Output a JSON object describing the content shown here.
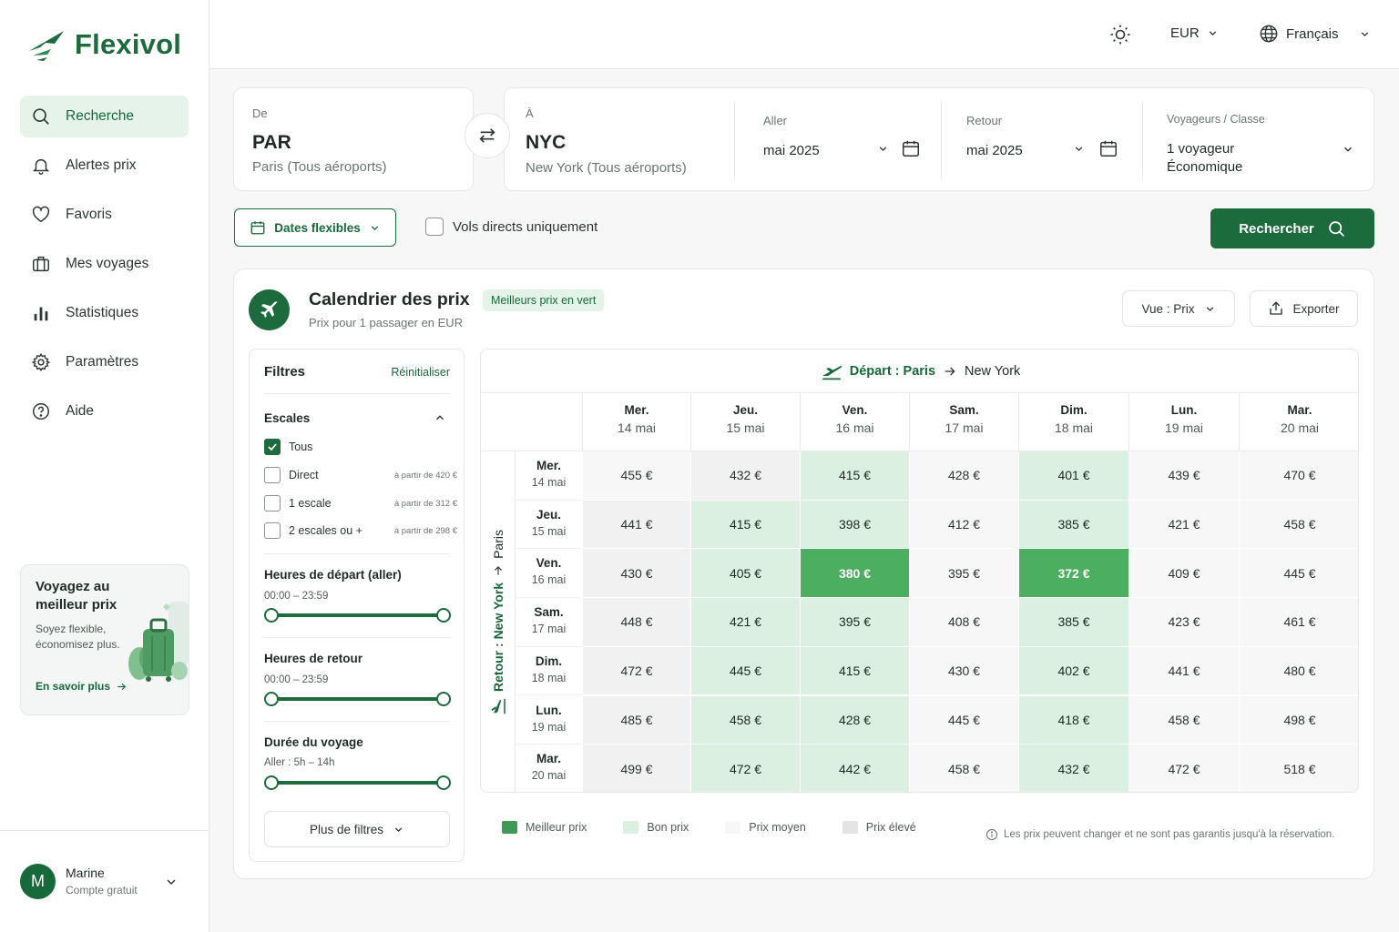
{
  "app": {
    "name": "Flexivol"
  },
  "nav": [
    {
      "label": "Recherche",
      "icon": "search-icon",
      "active": true
    },
    {
      "label": "Alertes prix",
      "icon": "bell-icon"
    },
    {
      "label": "Favoris",
      "icon": "heart-icon"
    },
    {
      "label": "Mes voyages",
      "icon": "suitcase-icon"
    },
    {
      "label": "Statistiques",
      "icon": "bar-chart-icon"
    },
    {
      "label": "Paramètres",
      "icon": "gear-icon"
    },
    {
      "label": "Aide",
      "icon": "help-icon"
    }
  ],
  "promo": {
    "title": "Voyagez au meilleur prix",
    "text": "Soyez flexible, économisez plus.",
    "link": "En savoir plus"
  },
  "user": {
    "initial": "M",
    "name": "Marine",
    "plan": "Compte gratuit"
  },
  "topbar": {
    "currency": "EUR",
    "language": "Français"
  },
  "search": {
    "from": {
      "label": "De",
      "code": "PAR",
      "city": "Paris (Tous aéroports)"
    },
    "to": {
      "label": "À",
      "code": "NYC",
      "city": "New York (Tous aéroports)"
    },
    "outbound": {
      "label": "Aller",
      "value": "mai 2025"
    },
    "return": {
      "label": "Retour",
      "value": "mai 2025"
    },
    "travelers": {
      "label": "Voyageurs / Classe",
      "count": "1 voyageur",
      "class": "Économique"
    },
    "flex_dates": "Dates flexibles",
    "direct_only": "Vols directs uniquement",
    "submit": "Rechercher"
  },
  "calendar": {
    "title": "Calendrier des prix",
    "subtitle": "Prix pour 1 passager en EUR",
    "badge": "Meilleurs prix en vert",
    "view": "Vue : Prix",
    "export": "Exporter",
    "departure_label": "Départ : Paris",
    "departure_dest": "New York",
    "return_label": "Retour : New York",
    "return_dest": "Paris",
    "columns": [
      {
        "day": "Mer.",
        "date": "14 mai"
      },
      {
        "day": "Jeu.",
        "date": "15 mai"
      },
      {
        "day": "Ven.",
        "date": "16 mai"
      },
      {
        "day": "Sam.",
        "date": "17 mai"
      },
      {
        "day": "Dim.",
        "date": "18 mai"
      },
      {
        "day": "Lun.",
        "date": "19 mai"
      },
      {
        "day": "Mar.",
        "date": "20 mai"
      }
    ],
    "rows": [
      {
        "day": "Mer.",
        "date": "14 mai",
        "prices": [
          "455 €",
          "432 €",
          "415 €",
          "428 €",
          "401 €",
          "439 €",
          "470 €"
        ],
        "levels": [
          "avg",
          "high",
          "good",
          "avg",
          "good",
          "avg",
          "avg"
        ]
      },
      {
        "day": "Jeu.",
        "date": "15 mai",
        "prices": [
          "441 €",
          "415 €",
          "398 €",
          "412 €",
          "385 €",
          "421 €",
          "458 €"
        ],
        "levels": [
          "high",
          "good",
          "good",
          "avg",
          "good",
          "avg",
          "avg"
        ]
      },
      {
        "day": "Ven.",
        "date": "16 mai",
        "prices": [
          "430 €",
          "405 €",
          "380 €",
          "395 €",
          "372 €",
          "409 €",
          "445 €"
        ],
        "levels": [
          "high",
          "good",
          "best",
          "avg",
          "best",
          "avg",
          "avg"
        ]
      },
      {
        "day": "Sam.",
        "date": "17 mai",
        "prices": [
          "448 €",
          "421 €",
          "395 €",
          "408 €",
          "385 €",
          "423 €",
          "461 €"
        ],
        "levels": [
          "high",
          "good",
          "good",
          "avg",
          "good",
          "avg",
          "avg"
        ]
      },
      {
        "day": "Dim.",
        "date": "18 mai",
        "prices": [
          "472 €",
          "445 €",
          "415 €",
          "430 €",
          "402 €",
          "441 €",
          "480 €"
        ],
        "levels": [
          "high",
          "good",
          "good",
          "avg",
          "good",
          "avg",
          "avg"
        ]
      },
      {
        "day": "Lun.",
        "date": "19 mai",
        "prices": [
          "485 €",
          "458 €",
          "428 €",
          "445 €",
          "418 €",
          "458 €",
          "498 €"
        ],
        "levels": [
          "high",
          "good",
          "good",
          "avg",
          "good",
          "avg",
          "avg"
        ]
      },
      {
        "day": "Mar.",
        "date": "20 mai",
        "prices": [
          "499 €",
          "472 €",
          "442 €",
          "458 €",
          "432 €",
          "472 €",
          "518 €"
        ],
        "levels": [
          "high",
          "good",
          "good",
          "avg",
          "good",
          "avg",
          "avg"
        ]
      }
    ],
    "legend": [
      {
        "label": "Meilleur prix",
        "color": "#3f9a54"
      },
      {
        "label": "Bon prix",
        "color": "#dbf0e0"
      },
      {
        "label": "Prix moyen",
        "color": "#f6f7f6"
      },
      {
        "label": "Prix élevé",
        "color": "#e3e5e4"
      }
    ],
    "note": "Les prix peuvent changer et ne sont pas garantis jusqu'à la réservation."
  },
  "filters": {
    "title": "Filtres",
    "reset": "Réinitialiser",
    "stops": {
      "title": "Escales",
      "options": [
        {
          "label": "Tous",
          "checked": true,
          "price": ""
        },
        {
          "label": "Direct",
          "checked": false,
          "price": "à partir de 420 €"
        },
        {
          "label": "1 escale",
          "checked": false,
          "price": "à partir de 312 €"
        },
        {
          "label": "2 escales ou +",
          "checked": false,
          "price": "à partir de 298 €"
        }
      ]
    },
    "dep_hours": {
      "title": "Heures de départ (aller)",
      "range": "00:00 – 23:59"
    },
    "ret_hours": {
      "title": "Heures de retour",
      "range": "00:00 – 23:59"
    },
    "duration": {
      "title": "Durée du voyage",
      "range": "Aller : 5h – 14h"
    },
    "more": "Plus de filtres"
  }
}
